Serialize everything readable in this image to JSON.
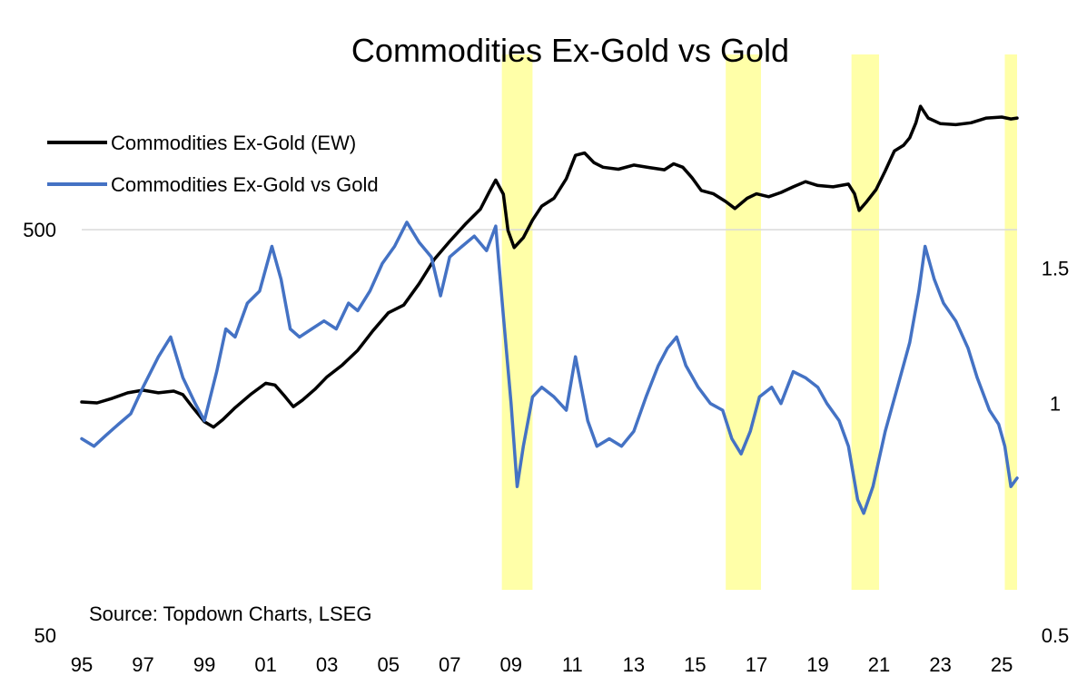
{
  "chart_data": {
    "type": "line",
    "title": "Commodities Ex-Gold vs Gold",
    "source": "Source: Topdown Charts, LSEG",
    "x_ticks": [
      "95",
      "97",
      "99",
      "01",
      "03",
      "05",
      "07",
      "09",
      "11",
      "13",
      "15",
      "17",
      "19",
      "21",
      "23",
      "25"
    ],
    "x_tick_years": [
      1995,
      1997,
      1999,
      2001,
      2003,
      2005,
      2007,
      2009,
      2011,
      2013,
      2015,
      2017,
      2019,
      2021,
      2023,
      2025
    ],
    "xlim": [
      1995.0,
      2025.5
    ],
    "left_axis": {
      "scale": "log",
      "ylim": [
        50,
        1500
      ],
      "ticks": [
        "500",
        "50"
      ],
      "tick_values": [
        500,
        50
      ]
    },
    "right_axis": {
      "scale": "log",
      "ylim": [
        0.5,
        3.0
      ],
      "ticks": [
        "1.5",
        "1",
        "0.5"
      ],
      "tick_values": [
        1.5,
        1,
        0.5
      ]
    },
    "gridline_at": 500,
    "legend": {
      "placement": "top-left"
    },
    "series": [
      {
        "name": "Commodities Ex-Gold (EW)",
        "axis": "left",
        "color": "#000000",
        "points": [
          [
            1995.0,
            188
          ],
          [
            1995.5,
            187
          ],
          [
            1996.0,
            192
          ],
          [
            1996.5,
            198
          ],
          [
            1997.0,
            201
          ],
          [
            1997.5,
            198
          ],
          [
            1998.0,
            200
          ],
          [
            1998.3,
            196
          ],
          [
            1998.6,
            183
          ],
          [
            1999.0,
            168
          ],
          [
            1999.3,
            163
          ],
          [
            1999.6,
            170
          ],
          [
            2000.0,
            182
          ],
          [
            2000.5,
            196
          ],
          [
            2001.0,
            209
          ],
          [
            2001.3,
            207
          ],
          [
            2001.6,
            195
          ],
          [
            2001.9,
            183
          ],
          [
            2002.2,
            190
          ],
          [
            2002.6,
            202
          ],
          [
            2003.0,
            217
          ],
          [
            2003.5,
            232
          ],
          [
            2004.0,
            252
          ],
          [
            2004.5,
            282
          ],
          [
            2005.0,
            312
          ],
          [
            2005.5,
            326
          ],
          [
            2006.0,
            368
          ],
          [
            2006.5,
            423
          ],
          [
            2007.0,
            468
          ],
          [
            2007.5,
            515
          ],
          [
            2008.0,
            562
          ],
          [
            2008.3,
            622
          ],
          [
            2008.5,
            663
          ],
          [
            2008.75,
            612
          ],
          [
            2008.9,
            498
          ],
          [
            2009.1,
            452
          ],
          [
            2009.4,
            478
          ],
          [
            2009.7,
            528
          ],
          [
            2010.0,
            572
          ],
          [
            2010.4,
            598
          ],
          [
            2010.8,
            668
          ],
          [
            2011.1,
            763
          ],
          [
            2011.4,
            773
          ],
          [
            2011.7,
            732
          ],
          [
            2012.0,
            713
          ],
          [
            2012.5,
            705
          ],
          [
            2013.0,
            722
          ],
          [
            2013.5,
            712
          ],
          [
            2014.0,
            703
          ],
          [
            2014.3,
            727
          ],
          [
            2014.6,
            713
          ],
          [
            2014.9,
            672
          ],
          [
            2015.2,
            625
          ],
          [
            2015.6,
            613
          ],
          [
            2016.0,
            587
          ],
          [
            2016.3,
            564
          ],
          [
            2016.7,
            598
          ],
          [
            2017.0,
            613
          ],
          [
            2017.4,
            603
          ],
          [
            2017.8,
            618
          ],
          [
            2018.2,
            638
          ],
          [
            2018.6,
            657
          ],
          [
            2019.0,
            643
          ],
          [
            2019.5,
            638
          ],
          [
            2020.0,
            648
          ],
          [
            2020.2,
            613
          ],
          [
            2020.35,
            558
          ],
          [
            2020.6,
            587
          ],
          [
            2020.9,
            628
          ],
          [
            2021.2,
            698
          ],
          [
            2021.5,
            782
          ],
          [
            2021.8,
            808
          ],
          [
            2022.0,
            843
          ],
          [
            2022.2,
            918
          ],
          [
            2022.35,
            1008
          ],
          [
            2022.6,
            943
          ],
          [
            2023.0,
            913
          ],
          [
            2023.5,
            908
          ],
          [
            2024.0,
            918
          ],
          [
            2024.5,
            943
          ],
          [
            2025.0,
            948
          ],
          [
            2025.3,
            938
          ],
          [
            2025.5,
            943
          ]
        ]
      },
      {
        "name": "Commodities Ex-Gold vs Gold",
        "axis": "right",
        "color": "#4472c4",
        "points": [
          [
            1995.0,
            0.9
          ],
          [
            1995.4,
            0.88
          ],
          [
            1995.8,
            0.91
          ],
          [
            1996.2,
            0.94
          ],
          [
            1996.6,
            0.97
          ],
          [
            1997.0,
            1.05
          ],
          [
            1997.5,
            1.15
          ],
          [
            1997.9,
            1.22
          ],
          [
            1998.3,
            1.08
          ],
          [
            1998.7,
            1.0
          ],
          [
            1999.0,
            0.95
          ],
          [
            1999.4,
            1.1
          ],
          [
            1999.7,
            1.25
          ],
          [
            2000.0,
            1.22
          ],
          [
            2000.4,
            1.35
          ],
          [
            2000.8,
            1.4
          ],
          [
            2001.2,
            1.6
          ],
          [
            2001.5,
            1.45
          ],
          [
            2001.8,
            1.25
          ],
          [
            2002.1,
            1.22
          ],
          [
            2002.5,
            1.25
          ],
          [
            2002.9,
            1.28
          ],
          [
            2003.3,
            1.25
          ],
          [
            2003.7,
            1.35
          ],
          [
            2004.0,
            1.32
          ],
          [
            2004.4,
            1.4
          ],
          [
            2004.8,
            1.52
          ],
          [
            2005.2,
            1.6
          ],
          [
            2005.6,
            1.72
          ],
          [
            2006.0,
            1.62
          ],
          [
            2006.4,
            1.55
          ],
          [
            2006.7,
            1.38
          ],
          [
            2007.0,
            1.55
          ],
          [
            2007.4,
            1.6
          ],
          [
            2007.8,
            1.65
          ],
          [
            2008.2,
            1.58
          ],
          [
            2008.5,
            1.7
          ],
          [
            2008.75,
            1.3
          ],
          [
            2009.0,
            1.0
          ],
          [
            2009.2,
            0.78
          ],
          [
            2009.4,
            0.88
          ],
          [
            2009.7,
            1.02
          ],
          [
            2010.0,
            1.05
          ],
          [
            2010.4,
            1.02
          ],
          [
            2010.8,
            0.98
          ],
          [
            2011.1,
            1.15
          ],
          [
            2011.5,
            0.95
          ],
          [
            2011.8,
            0.88
          ],
          [
            2012.2,
            0.9
          ],
          [
            2012.6,
            0.88
          ],
          [
            2013.0,
            0.92
          ],
          [
            2013.4,
            1.02
          ],
          [
            2013.8,
            1.12
          ],
          [
            2014.1,
            1.18
          ],
          [
            2014.4,
            1.22
          ],
          [
            2014.7,
            1.12
          ],
          [
            2015.1,
            1.05
          ],
          [
            2015.5,
            1.0
          ],
          [
            2015.9,
            0.98
          ],
          [
            2016.2,
            0.9
          ],
          [
            2016.5,
            0.86
          ],
          [
            2016.8,
            0.92
          ],
          [
            2017.1,
            1.02
          ],
          [
            2017.5,
            1.05
          ],
          [
            2017.8,
            1.0
          ],
          [
            2018.2,
            1.1
          ],
          [
            2018.6,
            1.08
          ],
          [
            2019.0,
            1.05
          ],
          [
            2019.3,
            1.0
          ],
          [
            2019.7,
            0.95
          ],
          [
            2020.0,
            0.88
          ],
          [
            2020.3,
            0.75
          ],
          [
            2020.5,
            0.72
          ],
          [
            2020.8,
            0.78
          ],
          [
            2021.2,
            0.92
          ],
          [
            2021.6,
            1.05
          ],
          [
            2022.0,
            1.2
          ],
          [
            2022.3,
            1.4
          ],
          [
            2022.5,
            1.6
          ],
          [
            2022.8,
            1.45
          ],
          [
            2023.1,
            1.35
          ],
          [
            2023.5,
            1.28
          ],
          [
            2023.9,
            1.18
          ],
          [
            2024.2,
            1.08
          ],
          [
            2024.6,
            0.98
          ],
          [
            2024.9,
            0.94
          ],
          [
            2025.1,
            0.88
          ],
          [
            2025.3,
            0.78
          ],
          [
            2025.5,
            0.8
          ]
        ]
      }
    ],
    "highlights": [
      {
        "from": 2008.7,
        "to": 2009.7,
        "color": "#ffff99"
      },
      {
        "from": 2016.0,
        "to": 2017.15,
        "color": "#ffff99"
      },
      {
        "from": 2020.1,
        "to": 2021.0,
        "color": "#ffff99"
      },
      {
        "from": 2025.1,
        "to": 2025.5,
        "color": "#ffff99"
      }
    ]
  }
}
